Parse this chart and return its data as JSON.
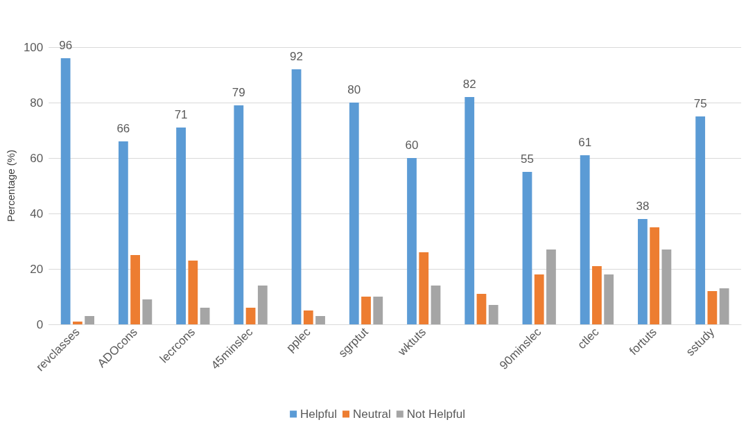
{
  "chart_data": {
    "type": "bar",
    "ylabel": "Percentage (%)",
    "categories": [
      "revclasses",
      "ADOcons",
      "lecrcons",
      "45minslec",
      "pplec",
      "sgrptut",
      "wktuts",
      null,
      "90minslec",
      "ctlec",
      "fortuts",
      "sstudy"
    ],
    "series": [
      {
        "name": "Helpful",
        "color": "#5b9bd5",
        "values": [
          96,
          66,
          71,
          79,
          92,
          80,
          60,
          82,
          55,
          61,
          38,
          75
        ],
        "value_labels": [
          "96",
          "66",
          "71",
          "79",
          "92",
          "80",
          "60",
          "82",
          "55",
          "61",
          "38",
          "75"
        ]
      },
      {
        "name": "Neutral",
        "color": "#ed7d31",
        "values": [
          1,
          25,
          23,
          6,
          5,
          10,
          26,
          11,
          18,
          21,
          35,
          12
        ]
      },
      {
        "name": "Not Helpful",
        "color": "#a5a5a5",
        "values": [
          3,
          9,
          6,
          14,
          3,
          10,
          14,
          7,
          27,
          18,
          27,
          13
        ]
      }
    ],
    "ylim": [
      0,
      100
    ],
    "yticks": [
      0,
      20,
      40,
      60,
      80,
      100
    ],
    "grid": "y",
    "legend": "bottom"
  }
}
